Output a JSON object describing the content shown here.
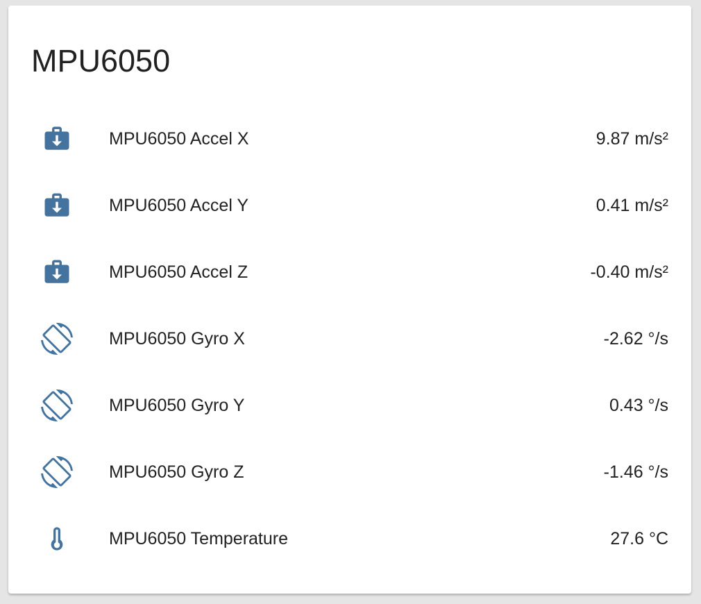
{
  "card": {
    "title": "MPU6050",
    "icon_color": "#44739e",
    "entities": [
      {
        "name": "MPU6050 Accel X",
        "value": "9.87 m/s²",
        "icon": "briefcase-download-icon"
      },
      {
        "name": "MPU6050 Accel Y",
        "value": "0.41 m/s²",
        "icon": "briefcase-download-icon"
      },
      {
        "name": "MPU6050 Accel Z",
        "value": "-0.40 m/s²",
        "icon": "briefcase-download-icon"
      },
      {
        "name": "MPU6050 Gyro X",
        "value": "-2.62 °/s",
        "icon": "screen-rotation-icon"
      },
      {
        "name": "MPU6050 Gyro Y",
        "value": "0.43 °/s",
        "icon": "screen-rotation-icon"
      },
      {
        "name": "MPU6050 Gyro Z",
        "value": "-1.46 °/s",
        "icon": "screen-rotation-icon"
      },
      {
        "name": "MPU6050 Temperature",
        "value": "27.6 °C",
        "icon": "thermometer-icon"
      }
    ]
  }
}
